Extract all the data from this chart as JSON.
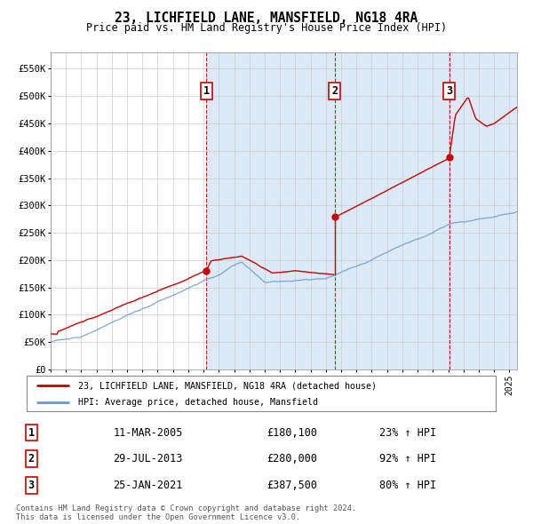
{
  "title": "23, LICHFIELD LANE, MANSFIELD, NG18 4RA",
  "subtitle": "Price paid vs. HM Land Registry's House Price Index (HPI)",
  "ylabel_ticks": [
    "£0",
    "£50K",
    "£100K",
    "£150K",
    "£200K",
    "£250K",
    "£300K",
    "£350K",
    "£400K",
    "£450K",
    "£500K",
    "£550K"
  ],
  "ytick_values": [
    0,
    50000,
    100000,
    150000,
    200000,
    250000,
    300000,
    350000,
    400000,
    450000,
    500000,
    550000
  ],
  "ylim": [
    0,
    580000
  ],
  "xlim_start": 1995.0,
  "xlim_end": 2025.5,
  "chart_bg_color": "#ffffff",
  "shade_color": "#dce9f7",
  "grid_color": "#cccccc",
  "legend_entry1": "23, LICHFIELD LANE, MANSFIELD, NG18 4RA (detached house)",
  "legend_entry2": "HPI: Average price, detached house, Mansfield",
  "sale_dates": [
    2005.19,
    2013.57,
    2021.07
  ],
  "sale_prices": [
    180100,
    280000,
    387500
  ],
  "sale_labels": [
    "1",
    "2",
    "3"
  ],
  "footer_line1": "Contains HM Land Registry data © Crown copyright and database right 2024.",
  "footer_line2": "This data is licensed under the Open Government Licence v3.0.",
  "table_rows": [
    {
      "label": "1",
      "date": "11-MAR-2005",
      "price": "£180,100",
      "change": "23% ↑ HPI"
    },
    {
      "label": "2",
      "date": "29-JUL-2013",
      "price": "£280,000",
      "change": "92% ↑ HPI"
    },
    {
      "label": "3",
      "date": "25-JAN-2021",
      "price": "£387,500",
      "change": "80% ↑ HPI"
    }
  ],
  "red_line_color": "#cc0000",
  "blue_line_color": "#6699cc",
  "dashed_line_color": "#cc0000"
}
